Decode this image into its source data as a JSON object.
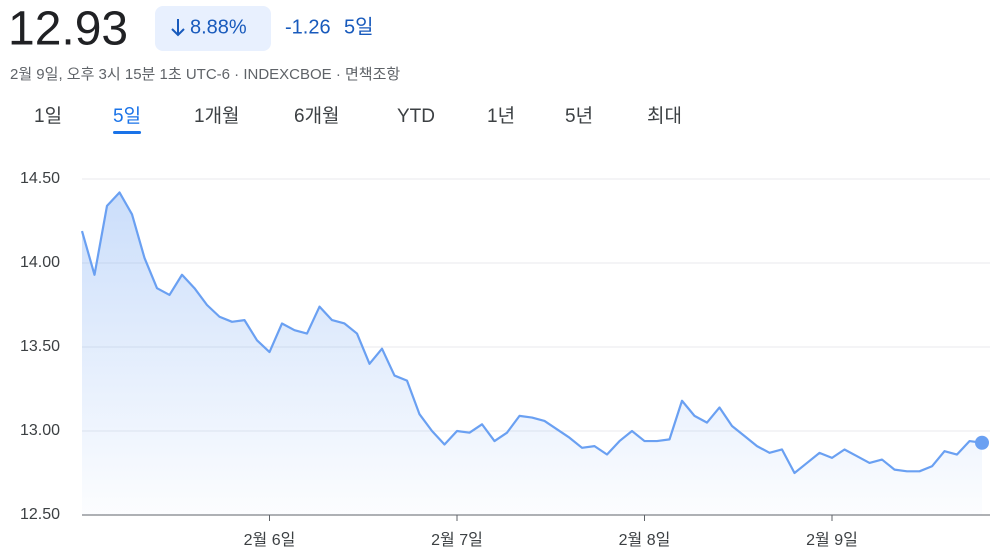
{
  "header": {
    "price": "12.93",
    "change_pct": "8.88%",
    "change": "-1.26",
    "period": "5일",
    "subtitle": "2월 9일, 오후 3시 15분 1초 UTC-6 · INDEXCBOE · 면책조항"
  },
  "tabs": [
    "1일",
    "5일",
    "1개월",
    "6개월",
    "YTD",
    "1년",
    "5년",
    "최대"
  ],
  "active_tab": 1,
  "chart_data": {
    "type": "area",
    "color": "#6aa0f2",
    "grid": true,
    "categories": [
      null,
      null,
      null,
      null,
      null,
      null,
      null,
      null,
      null,
      null,
      null,
      null,
      null,
      null,
      null,
      "2월 6일",
      null,
      null,
      null,
      null,
      null,
      null,
      null,
      null,
      null,
      null,
      null,
      null,
      null,
      null,
      "2월 7일",
      null,
      null,
      null,
      null,
      null,
      null,
      null,
      null,
      null,
      null,
      null,
      null,
      null,
      null,
      "2월 8일",
      null,
      null,
      null,
      null,
      null,
      null,
      null,
      null,
      null,
      null,
      null,
      null,
      null,
      null,
      "2월 9일",
      null,
      null,
      null,
      null,
      null,
      null,
      null,
      null,
      null,
      null,
      null,
      null
    ],
    "values": [
      14.19,
      13.93,
      14.34,
      14.42,
      14.29,
      14.03,
      13.85,
      13.81,
      13.93,
      13.85,
      13.75,
      13.68,
      13.65,
      13.66,
      13.54,
      13.47,
      13.64,
      13.6,
      13.58,
      13.74,
      13.66,
      13.64,
      13.58,
      13.4,
      13.49,
      13.33,
      13.3,
      13.1,
      13.0,
      12.92,
      13.0,
      12.99,
      13.04,
      12.94,
      12.99,
      13.09,
      13.08,
      13.06,
      13.01,
      12.96,
      12.9,
      12.91,
      12.86,
      12.94,
      13.0,
      12.94,
      12.94,
      12.95,
      13.18,
      13.09,
      13.05,
      13.14,
      13.03,
      12.97,
      12.91,
      12.87,
      12.89,
      12.75,
      12.81,
      12.87,
      12.84,
      12.89,
      12.85,
      12.81,
      12.83,
      12.77,
      12.76,
      12.76,
      12.79,
      12.88,
      12.86,
      12.94,
      12.93
    ],
    "ylim": [
      12.5,
      14.5
    ],
    "yticks": [
      {
        "value": 12.5,
        "label": "12.50"
      },
      {
        "value": 13,
        "label": "13.00"
      },
      {
        "value": 13.5,
        "label": "13.50"
      },
      {
        "value": 14,
        "label": "14.00"
      },
      {
        "value": 14.5,
        "label": "14.50"
      }
    ]
  }
}
